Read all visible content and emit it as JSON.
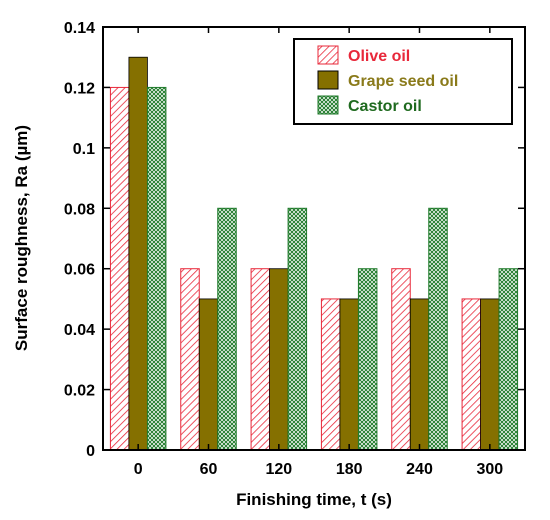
{
  "chart_data": {
    "type": "bar",
    "xlabel": "Finishing time, t (s)",
    "ylabel": "Surface roughness, Ra (µm)",
    "categories": [
      "0",
      "60",
      "120",
      "180",
      "240",
      "300"
    ],
    "ylim": [
      0,
      0.14
    ],
    "yticks": [
      0,
      0.02,
      0.04,
      0.06,
      0.08,
      0.1,
      0.12,
      0.14
    ],
    "ytick_labels": [
      "0",
      "0.02",
      "0.04",
      "0.06",
      "0.08",
      "0.1",
      "0.12",
      "0.14"
    ],
    "grid": false,
    "legend_position": "top-right",
    "series": [
      {
        "name": "Olive oil",
        "values": [
          0.12,
          0.06,
          0.06,
          0.05,
          0.06,
          0.05
        ],
        "color": "#e8283a",
        "pattern": "diagonal-hatch",
        "label_color": "#e8283a"
      },
      {
        "name": "Grape seed oil",
        "values": [
          0.13,
          0.05,
          0.06,
          0.05,
          0.05,
          0.05
        ],
        "color": "#857000",
        "pattern": "solid",
        "label_color": "#8a7a1a"
      },
      {
        "name": "Castor oil",
        "values": [
          0.12,
          0.08,
          0.08,
          0.06,
          0.08,
          0.06
        ],
        "color": "#1f7a2a",
        "pattern": "crosshatch",
        "label_color": "#1f6a1f"
      }
    ]
  }
}
